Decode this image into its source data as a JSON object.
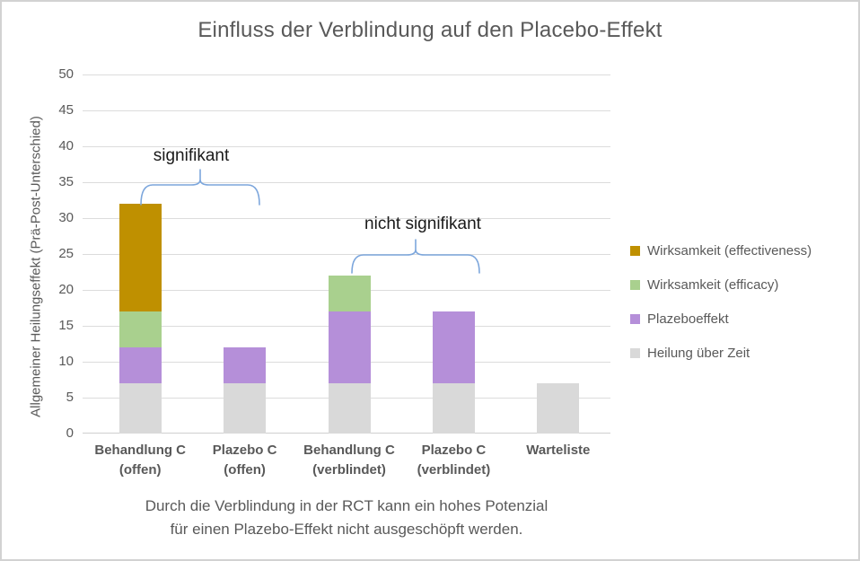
{
  "frame": {
    "background": "#ffffff",
    "border_color": "#d2d2d2"
  },
  "chart_data": {
    "type": "bar",
    "stacked": true,
    "title": "Einfluss der Verblindung auf den Placebo-Effekt",
    "ylabel": "Allgemeiner Heilungseffekt (Prä-Post-Unterschied)",
    "xlabel": "",
    "ylim": [
      0,
      50
    ],
    "ytick_step": 5,
    "yticks": [
      0,
      5,
      10,
      15,
      20,
      25,
      30,
      35,
      40,
      45,
      50
    ],
    "grid": true,
    "legend_position": "right",
    "categories": [
      {
        "label": "Behandlung C",
        "sub": "(offen)"
      },
      {
        "label": "Plazebo C",
        "sub": "(offen)"
      },
      {
        "label": "Behandlung C",
        "sub": "(verblindet)"
      },
      {
        "label": "Plazebo C",
        "sub": "(verblindet)"
      },
      {
        "label": "Warteliste",
        "sub": ""
      }
    ],
    "series": [
      {
        "name": "Heilung über Zeit",
        "color": "#d9d9d9",
        "values": [
          7,
          7,
          7,
          7,
          7
        ]
      },
      {
        "name": "Plazeboeffekt",
        "color": "#b58fd9",
        "values": [
          5,
          5,
          10,
          10,
          0
        ]
      },
      {
        "name": "Wirksamkeit (efficacy)",
        "color": "#a9d08e",
        "values": [
          5,
          0,
          5,
          0,
          0
        ]
      },
      {
        "name": "Wirksamkeit (effectiveness)",
        "color": "#bf9000",
        "values": [
          15,
          0,
          0,
          0,
          0
        ]
      }
    ],
    "totals": [
      32,
      12,
      22,
      17,
      7
    ],
    "legend_order": [
      "Wirksamkeit (effectiveness)",
      "Wirksamkeit (efficacy)",
      "Plazeboeffekt",
      "Heilung über Zeit"
    ],
    "annotations": [
      {
        "text": "signifikant",
        "spans_bars": [
          0,
          1
        ],
        "brace_color": "#7ca6dc"
      },
      {
        "text": "nicht signifikant",
        "spans_bars": [
          2,
          3
        ],
        "brace_color": "#7ca6dc"
      }
    ],
    "caption_lines": [
      "Durch die Verblindung in der RCT kann ein hohes Potenzial",
      "für einen Plazebo-Effekt nicht ausgeschöpft werden."
    ]
  }
}
